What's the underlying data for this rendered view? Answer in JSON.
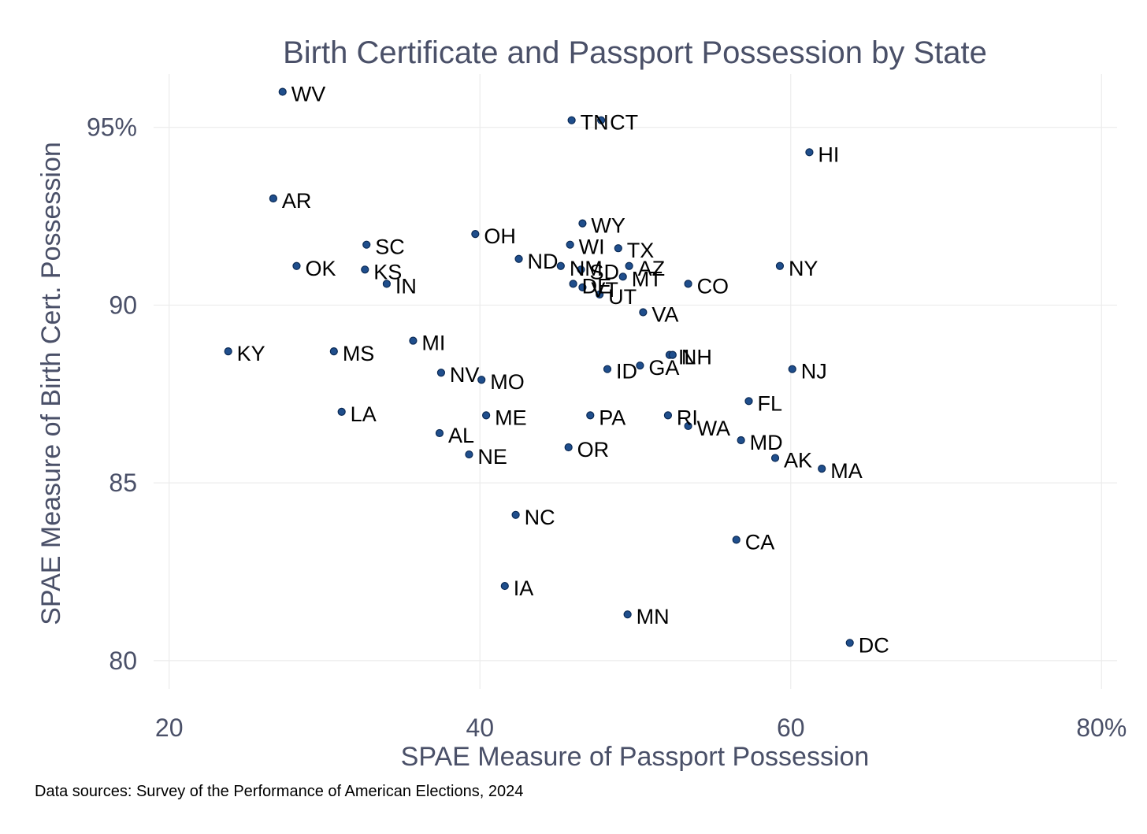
{
  "chart_data": {
    "type": "scatter",
    "title": "Birth Certificate and Passport Possession by State",
    "xlabel": "SPAE Measure of Passport Possession",
    "ylabel": "SPAE Measure of Birth Cert. Possession",
    "xlim": [
      19,
      81
    ],
    "ylim": [
      79.2,
      96.5
    ],
    "xticks": [
      20,
      40,
      60,
      80
    ],
    "xtick_labels": [
      "20",
      "40",
      "60",
      "80%"
    ],
    "yticks": [
      80,
      85,
      90,
      95
    ],
    "ytick_labels": [
      "80",
      "85",
      "90",
      "95%"
    ],
    "grid": true,
    "legend": "none",
    "marker_color": "#1f4e8c",
    "marker_edge_color": "#0b2a55",
    "source": "Data sources: Survey of the Performance of American Elections, 2024",
    "points": [
      {
        "label": "WV",
        "x": 27.3,
        "y": 96.0
      },
      {
        "label": "TN",
        "x": 45.9,
        "y": 95.2
      },
      {
        "label": "CT",
        "x": 47.8,
        "y": 95.2
      },
      {
        "label": "HI",
        "x": 61.2,
        "y": 94.3
      },
      {
        "label": "AR",
        "x": 26.7,
        "y": 93.0
      },
      {
        "label": "WY",
        "x": 46.6,
        "y": 92.3
      },
      {
        "label": "OH",
        "x": 39.7,
        "y": 92.0
      },
      {
        "label": "SC",
        "x": 32.7,
        "y": 91.7
      },
      {
        "label": "WI",
        "x": 45.8,
        "y": 91.7
      },
      {
        "label": "TX",
        "x": 48.9,
        "y": 91.6
      },
      {
        "label": "ND",
        "x": 42.5,
        "y": 91.3
      },
      {
        "label": "NM",
        "x": 45.2,
        "y": 91.1
      },
      {
        "label": "SD",
        "x": 46.5,
        "y": 91.0
      },
      {
        "label": "AZ",
        "x": 49.6,
        "y": 91.1
      },
      {
        "label": "OK",
        "x": 28.2,
        "y": 91.1
      },
      {
        "label": "KS",
        "x": 32.6,
        "y": 91.0
      },
      {
        "label": "NY",
        "x": 59.3,
        "y": 91.1
      },
      {
        "label": "MT",
        "x": 49.2,
        "y": 90.8
      },
      {
        "label": "IN",
        "x": 34.0,
        "y": 90.6
      },
      {
        "label": "DE",
        "x": 46.0,
        "y": 90.6
      },
      {
        "label": "VT",
        "x": 46.6,
        "y": 90.5
      },
      {
        "label": "CO",
        "x": 53.4,
        "y": 90.6
      },
      {
        "label": "UT",
        "x": 47.7,
        "y": 90.3
      },
      {
        "label": "VA",
        "x": 50.5,
        "y": 89.8
      },
      {
        "label": "MI",
        "x": 35.7,
        "y": 89.0
      },
      {
        "label": "KY",
        "x": 23.8,
        "y": 88.7
      },
      {
        "label": "MS",
        "x": 30.6,
        "y": 88.7
      },
      {
        "label": "IL",
        "x": 52.2,
        "y": 88.6
      },
      {
        "label": "NH",
        "x": 52.4,
        "y": 88.6
      },
      {
        "label": "GA",
        "x": 50.3,
        "y": 88.3
      },
      {
        "label": "NJ",
        "x": 60.1,
        "y": 88.2
      },
      {
        "label": "ID",
        "x": 48.2,
        "y": 88.2
      },
      {
        "label": "NV",
        "x": 37.5,
        "y": 88.1
      },
      {
        "label": "MO",
        "x": 40.1,
        "y": 87.9
      },
      {
        "label": "FL",
        "x": 57.3,
        "y": 87.3
      },
      {
        "label": "LA",
        "x": 31.1,
        "y": 87.0
      },
      {
        "label": "PA",
        "x": 47.1,
        "y": 86.9
      },
      {
        "label": "RI",
        "x": 52.1,
        "y": 86.9
      },
      {
        "label": "ME",
        "x": 40.4,
        "y": 86.9
      },
      {
        "label": "WA",
        "x": 53.4,
        "y": 86.6
      },
      {
        "label": "AL",
        "x": 37.4,
        "y": 86.4
      },
      {
        "label": "MD",
        "x": 56.8,
        "y": 86.2
      },
      {
        "label": "OR",
        "x": 45.7,
        "y": 86.0
      },
      {
        "label": "NE",
        "x": 39.3,
        "y": 85.8
      },
      {
        "label": "AK",
        "x": 59.0,
        "y": 85.7
      },
      {
        "label": "MA",
        "x": 62.0,
        "y": 85.4
      },
      {
        "label": "NC",
        "x": 42.3,
        "y": 84.1
      },
      {
        "label": "CA",
        "x": 56.5,
        "y": 83.4
      },
      {
        "label": "IA",
        "x": 41.6,
        "y": 82.1
      },
      {
        "label": "MN",
        "x": 49.5,
        "y": 81.3
      },
      {
        "label": "DC",
        "x": 63.8,
        "y": 80.5
      }
    ]
  }
}
